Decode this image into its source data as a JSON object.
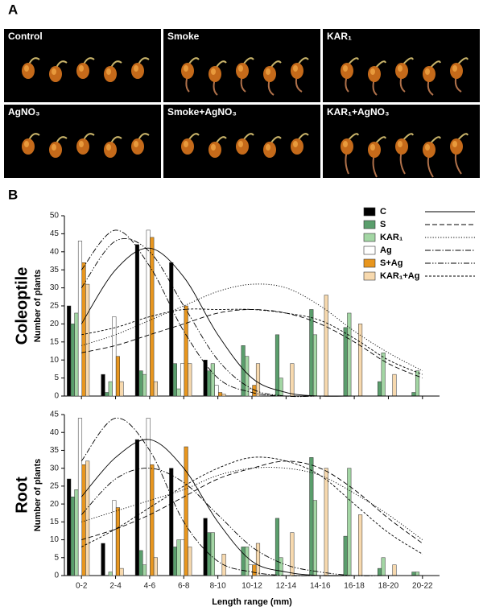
{
  "panel_a": {
    "label": "A",
    "images": [
      {
        "label": "Control"
      },
      {
        "label": "Smoke"
      },
      {
        "label": "KAR₁"
      },
      {
        "label": "AgNO₃"
      },
      {
        "label": "Smoke+AgNO₃"
      },
      {
        "label": "KAR₁+AgNO₃"
      }
    ]
  },
  "panel_b": {
    "label": "B"
  },
  "chart_data": [
    {
      "type": "bar",
      "ylabel": "Coleoptile",
      "ysublabel": "Number of plants",
      "legend": true,
      "categories": [
        "0-2",
        "2-4",
        "4-6",
        "6-8",
        "8-10",
        "10-12",
        "12-14",
        "14-16",
        "16-18",
        "18-20",
        "20-22"
      ],
      "ylim": [
        0,
        50
      ],
      "yticks": [
        0,
        5,
        10,
        15,
        20,
        25,
        30,
        35,
        40,
        45,
        50
      ],
      "series": [
        {
          "name": "C",
          "color": "#000000",
          "line_style": "solid",
          "values": [
            25,
            6,
            42,
            37,
            10,
            0,
            0,
            0,
            0,
            0,
            0
          ],
          "fit": [
            20,
            35,
            41,
            33,
            17,
            5,
            1,
            0,
            0,
            0,
            0
          ]
        },
        {
          "name": "S",
          "color": "#5a9e6c",
          "line_style": "dashed",
          "values": [
            20,
            1,
            7,
            9,
            7,
            14,
            17,
            24,
            19,
            4,
            1
          ],
          "fit": [
            12,
            14,
            17,
            20,
            23,
            24,
            23,
            20,
            15,
            9,
            5
          ]
        },
        {
          "name": "KAR₁",
          "color": "#a3d6a4",
          "line_style": "dotted",
          "values": [
            23,
            4,
            6,
            2,
            9,
            11,
            5,
            17,
            23,
            12,
            7
          ],
          "fit": [
            14,
            17,
            21,
            25,
            29,
            31,
            30,
            25,
            18,
            12,
            7
          ]
        },
        {
          "name": "Ag",
          "color": "#ffffff",
          "line_style": "dash-dot",
          "values": [
            43,
            22,
            46,
            9,
            3,
            2,
            0,
            0,
            0,
            0,
            0
          ],
          "fit": [
            35,
            46,
            36,
            18,
            5,
            1,
            0,
            0,
            0,
            0,
            0
          ]
        },
        {
          "name": "S+Ag",
          "color": "#e8961e",
          "line_style": "dash-dot-dot",
          "values": [
            37,
            11,
            44,
            25,
            1,
            3,
            0,
            0,
            0,
            0,
            0
          ],
          "fit": [
            30,
            43,
            40,
            25,
            10,
            2,
            0,
            0,
            0,
            0,
            0
          ]
        },
        {
          "name": "KAR₁+Ag",
          "color": "#f7d9ae",
          "line_style": "short-dash",
          "values": [
            31,
            4,
            4,
            9,
            0.5,
            9,
            9,
            28,
            20,
            6,
            0
          ],
          "fit": [
            17,
            19,
            22,
            24,
            24,
            24,
            23,
            21,
            16,
            10,
            6
          ]
        }
      ]
    },
    {
      "type": "bar",
      "ylabel": "Root",
      "ysublabel": "Number of plants",
      "xlabel": "Length range (mm)",
      "legend": false,
      "categories": [
        "0-2",
        "2-4",
        "4-6",
        "6-8",
        "8-10",
        "10-12",
        "12-14",
        "14-16",
        "16-18",
        "18-20",
        "20-22"
      ],
      "ylim": [
        0,
        45
      ],
      "yticks": [
        0,
        5,
        10,
        15,
        20,
        25,
        30,
        35,
        40,
        45
      ],
      "series": [
        {
          "name": "C",
          "color": "#000000",
          "line_style": "solid",
          "values": [
            27,
            9,
            38,
            30,
            16,
            0,
            0,
            0,
            0,
            0,
            0
          ],
          "fit": [
            22,
            33,
            38,
            30,
            15,
            4,
            1,
            0,
            0,
            0,
            0
          ]
        },
        {
          "name": "S",
          "color": "#5a9e6c",
          "line_style": "dashed",
          "values": [
            22,
            0,
            7,
            8,
            12,
            8,
            16,
            33,
            11,
            2,
            1
          ],
          "fit": [
            10,
            13,
            17,
            22,
            27,
            30,
            32,
            30,
            24,
            16,
            9
          ]
        },
        {
          "name": "KAR₁",
          "color": "#a3d6a4",
          "line_style": "dotted",
          "values": [
            24,
            1,
            3,
            10,
            12,
            8,
            5,
            21,
            30,
            5,
            1
          ],
          "fit": [
            15,
            18,
            21,
            24,
            28,
            30,
            30,
            28,
            23,
            17,
            10
          ]
        },
        {
          "name": "Ag",
          "color": "#ffffff",
          "line_style": "dash-dot",
          "values": [
            44,
            21,
            44,
            10,
            0,
            3,
            0,
            0,
            0,
            0,
            0
          ],
          "fit": [
            32,
            44,
            35,
            15,
            4,
            1,
            0,
            0,
            0,
            0,
            0
          ]
        },
        {
          "name": "S+Ag",
          "color": "#e8961e",
          "line_style": "dash-dot-dot",
          "values": [
            31,
            19,
            31,
            36,
            0,
            3,
            0,
            0,
            0,
            0,
            0
          ],
          "fit": [
            17,
            27,
            30,
            26,
            17,
            8,
            3,
            1,
            0,
            0,
            0
          ]
        },
        {
          "name": "KAR₁+Ag",
          "color": "#f7d9ae",
          "line_style": "short-dash",
          "values": [
            32,
            2,
            5,
            8,
            6,
            9,
            12,
            30,
            17,
            3,
            0
          ],
          "fit": [
            8,
            13,
            19,
            25,
            30,
            33,
            32,
            28,
            20,
            12,
            6
          ]
        }
      ]
    }
  ]
}
